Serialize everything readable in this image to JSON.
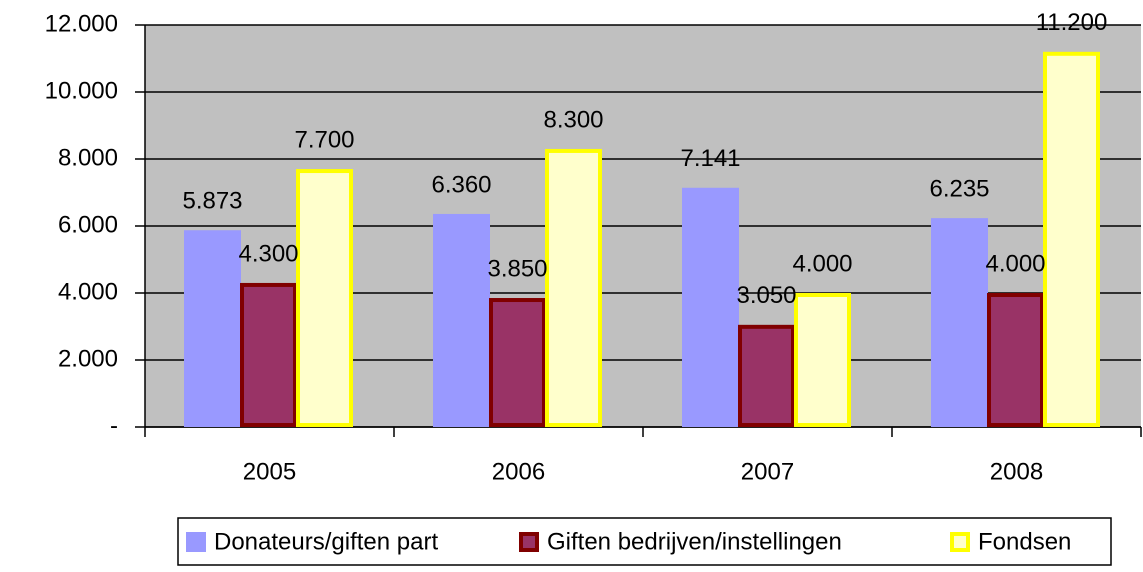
{
  "chart_data": {
    "type": "bar",
    "categories": [
      "2005",
      "2006",
      "2007",
      "2008"
    ],
    "series": [
      {
        "name": "Donateurs/giften part",
        "color": "#9999ff",
        "values": [
          5873,
          6360,
          7141,
          6235
        ],
        "value_labels": [
          "5.873",
          "6.360",
          "7.141",
          "6.235"
        ]
      },
      {
        "name": "Giften bedrijven/instellingen",
        "color": "#993366",
        "stroke": "#800000",
        "values": [
          4300,
          3850,
          3050,
          4000
        ],
        "value_labels": [
          "4.300",
          "3.850",
          "3.050",
          "4.000"
        ]
      },
      {
        "name": "Fondsen",
        "color": "#ffffcc",
        "stroke": "#ffff00",
        "values": [
          7700,
          8300,
          4000,
          11200
        ],
        "value_labels": [
          "7.700",
          "8.300",
          "4.000",
          "11.200"
        ]
      }
    ],
    "ylim": [
      0,
      12000
    ],
    "yticks": [
      {
        "value": 0,
        "label": "-"
      },
      {
        "value": 2000,
        "label": "2.000"
      },
      {
        "value": 4000,
        "label": "4.000"
      },
      {
        "value": 6000,
        "label": "6.000"
      },
      {
        "value": 8000,
        "label": "8.000"
      },
      {
        "value": 10000,
        "label": "10.000"
      },
      {
        "value": 12000,
        "label": "12.000"
      }
    ],
    "grid": true,
    "legend": "bottom"
  }
}
